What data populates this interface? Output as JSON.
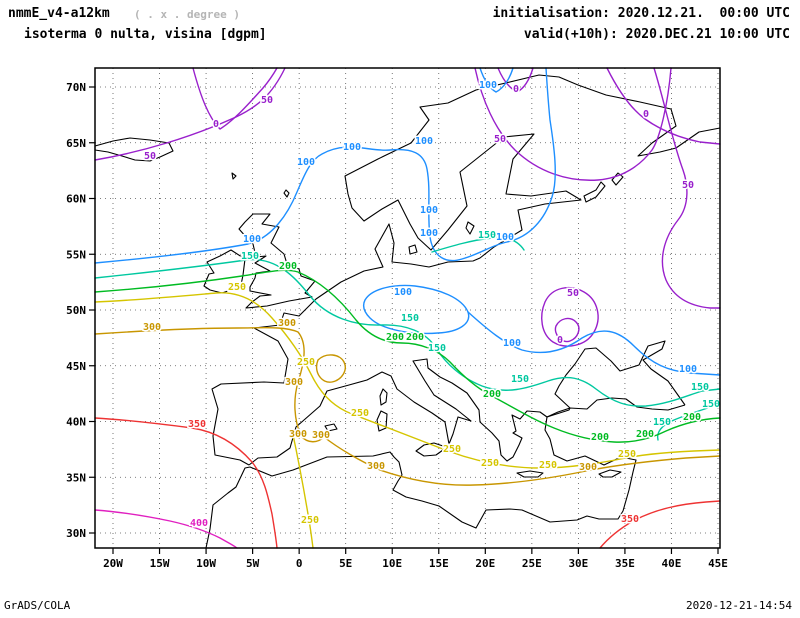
{
  "header": {
    "model": "nmmE_v4-a12km",
    "grid_note": "( . x . degree )",
    "field_title": "isoterma 0 nulta, visina [dgpm]",
    "initialisation": "initialisation: 2020.12.21.  00:00 UTC",
    "valid": "valid(+10h): 2020.DEC.21 10:00 UTC"
  },
  "footer": {
    "generator": "GrADS/COLA",
    "timestamp": "2020-12-21-14:54"
  },
  "chart_data": {
    "type": "contour-map",
    "title": "isoterma 0 nulta, visina [dgpm]",
    "units": "dgpm",
    "grid": true,
    "x_ticks": [
      "20W",
      "15W",
      "10W",
      "5W",
      "0",
      "5E",
      "10E",
      "15E",
      "20E",
      "25E",
      "30E",
      "35E",
      "40E",
      "45E"
    ],
    "y_ticks": [
      "70N",
      "65N",
      "60N",
      "55N",
      "50N",
      "45N",
      "40N",
      "35N",
      "30N"
    ],
    "levels": [
      {
        "value": 0,
        "color": "#9920cc"
      },
      {
        "value": 50,
        "color": "#9920cc"
      },
      {
        "value": 100,
        "color": "#1e8fff"
      },
      {
        "value": 150,
        "color": "#00c8a0"
      },
      {
        "value": 200,
        "color": "#00bb22"
      },
      {
        "value": 250,
        "color": "#d5c500"
      },
      {
        "value": 300,
        "color": "#c89600"
      },
      {
        "value": 350,
        "color": "#ee3333"
      },
      {
        "value": 400,
        "color": "#e020c0"
      }
    ],
    "coast_color": "#000000",
    "contour_labels": [
      {
        "level": 0,
        "x": 216,
        "y": 127
      },
      {
        "level": 0,
        "x": 516,
        "y": 92
      },
      {
        "level": 0,
        "x": 646,
        "y": 117
      },
      {
        "level": 0,
        "x": 560,
        "y": 343
      },
      {
        "level": 50,
        "x": 150,
        "y": 159
      },
      {
        "level": 50,
        "x": 267,
        "y": 103
      },
      {
        "level": 50,
        "x": 500,
        "y": 142
      },
      {
        "level": 50,
        "x": 688,
        "y": 188
      },
      {
        "level": 50,
        "x": 573,
        "y": 296
      },
      {
        "level": 100,
        "x": 252,
        "y": 242
      },
      {
        "level": 100,
        "x": 306,
        "y": 165
      },
      {
        "level": 100,
        "x": 352,
        "y": 150
      },
      {
        "level": 100,
        "x": 424,
        "y": 144
      },
      {
        "level": 100,
        "x": 429,
        "y": 213
      },
      {
        "level": 100,
        "x": 429,
        "y": 236
      },
      {
        "level": 100,
        "x": 505,
        "y": 240
      },
      {
        "level": 100,
        "x": 403,
        "y": 295
      },
      {
        "level": 100,
        "x": 512,
        "y": 346
      },
      {
        "level": 100,
        "x": 688,
        "y": 372
      },
      {
        "level": 100,
        "x": 488,
        "y": 88
      },
      {
        "level": 150,
        "x": 250,
        "y": 259
      },
      {
        "level": 150,
        "x": 410,
        "y": 321
      },
      {
        "level": 150,
        "x": 437,
        "y": 351
      },
      {
        "level": 150,
        "x": 520,
        "y": 382
      },
      {
        "level": 150,
        "x": 487,
        "y": 238
      },
      {
        "level": 150,
        "x": 700,
        "y": 390
      },
      {
        "level": 150,
        "x": 711,
        "y": 407
      },
      {
        "level": 150,
        "x": 662,
        "y": 425
      },
      {
        "level": 200,
        "x": 288,
        "y": 269
      },
      {
        "level": 200,
        "x": 395,
        "y": 340
      },
      {
        "level": 200,
        "x": 415,
        "y": 340
      },
      {
        "level": 200,
        "x": 492,
        "y": 397
      },
      {
        "level": 200,
        "x": 600,
        "y": 440
      },
      {
        "level": 200,
        "x": 645,
        "y": 437
      },
      {
        "level": 200,
        "x": 692,
        "y": 420
      },
      {
        "level": 250,
        "x": 237,
        "y": 290
      },
      {
        "level": 250,
        "x": 306,
        "y": 365
      },
      {
        "level": 250,
        "x": 360,
        "y": 416
      },
      {
        "level": 250,
        "x": 452,
        "y": 452
      },
      {
        "level": 250,
        "x": 490,
        "y": 466
      },
      {
        "level": 250,
        "x": 548,
        "y": 468
      },
      {
        "level": 250,
        "x": 627,
        "y": 457
      },
      {
        "level": 250,
        "x": 310,
        "y": 523
      },
      {
        "level": 300,
        "x": 152,
        "y": 330
      },
      {
        "level": 300,
        "x": 287,
        "y": 326
      },
      {
        "level": 300,
        "x": 294,
        "y": 385
      },
      {
        "level": 300,
        "x": 298,
        "y": 437
      },
      {
        "level": 300,
        "x": 321,
        "y": 438
      },
      {
        "level": 300,
        "x": 376,
        "y": 469
      },
      {
        "level": 300,
        "x": 588,
        "y": 470
      },
      {
        "level": 350,
        "x": 197,
        "y": 427
      },
      {
        "level": 350,
        "x": 630,
        "y": 522
      },
      {
        "level": 400,
        "x": 199,
        "y": 526
      }
    ]
  }
}
